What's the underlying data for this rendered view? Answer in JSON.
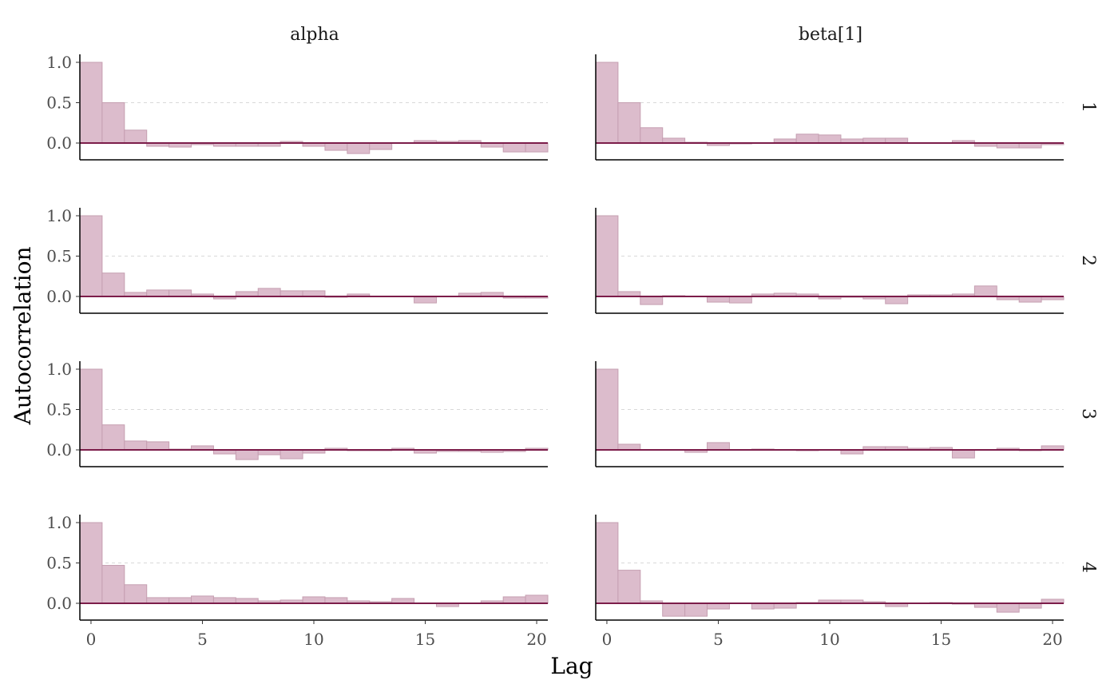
{
  "chart_data": {
    "type": "bar",
    "x_label": "Lag",
    "y_label": "Autocorrelation",
    "x_ticks": [
      0,
      5,
      10,
      15,
      20
    ],
    "y_ticks": [
      0.0,
      0.5,
      1.0
    ],
    "y_tick_labels": [
      "0.0",
      "0.5",
      "1.0"
    ],
    "xlim": [
      -0.5,
      20.5
    ],
    "ylim": [
      -0.21,
      1.1
    ],
    "grid": "dashed horizontal at 0.5",
    "colors": {
      "bar_fill": "#dcbccc",
      "bar_stroke": "#c59fb1",
      "zero_line": "#7c1d4a"
    },
    "columns": [
      "alpha",
      "beta[1]"
    ],
    "rows": [
      "1",
      "2",
      "3",
      "4"
    ],
    "lags": [
      0,
      1,
      2,
      3,
      4,
      5,
      6,
      7,
      8,
      9,
      10,
      11,
      12,
      13,
      14,
      15,
      16,
      17,
      18,
      19,
      20
    ],
    "panels": [
      {
        "column": "alpha",
        "row": "1",
        "values": [
          1.0,
          0.5,
          0.16,
          -0.04,
          -0.05,
          -0.02,
          -0.04,
          -0.04,
          -0.04,
          0.02,
          -0.04,
          -0.09,
          -0.13,
          -0.08,
          0.0,
          0.03,
          0.02,
          0.03,
          -0.05,
          -0.11,
          -0.11
        ]
      },
      {
        "column": "beta[1]",
        "row": "1",
        "values": [
          1.0,
          0.5,
          0.19,
          0.06,
          0.01,
          -0.03,
          -0.01,
          0.0,
          0.05,
          0.11,
          0.1,
          0.05,
          0.06,
          0.06,
          0.0,
          0.0,
          0.03,
          -0.04,
          -0.06,
          -0.06,
          -0.02
        ]
      },
      {
        "column": "alpha",
        "row": "2",
        "values": [
          1.0,
          0.29,
          0.05,
          0.08,
          0.08,
          0.03,
          -0.03,
          0.06,
          0.1,
          0.07,
          0.07,
          -0.01,
          0.03,
          0.0,
          0.0,
          -0.08,
          0.0,
          0.04,
          0.05,
          -0.02,
          -0.02
        ]
      },
      {
        "column": "beta[1]",
        "row": "2",
        "values": [
          1.0,
          0.06,
          -0.1,
          0.01,
          0.0,
          -0.07,
          -0.08,
          0.03,
          0.04,
          0.03,
          -0.03,
          -0.01,
          -0.03,
          -0.09,
          0.02,
          0.02,
          0.03,
          0.13,
          -0.04,
          -0.07,
          -0.04
        ]
      },
      {
        "column": "alpha",
        "row": "3",
        "values": [
          1.0,
          0.31,
          0.11,
          0.1,
          0.01,
          0.05,
          -0.05,
          -0.12,
          -0.06,
          -0.11,
          -0.04,
          0.02,
          -0.01,
          -0.01,
          0.02,
          -0.04,
          -0.02,
          -0.02,
          -0.03,
          -0.02,
          0.02
        ]
      },
      {
        "column": "beta[1]",
        "row": "3",
        "values": [
          1.0,
          0.07,
          0.0,
          0.0,
          -0.03,
          0.09,
          0.0,
          0.01,
          0.0,
          -0.01,
          0.0,
          -0.05,
          0.04,
          0.04,
          0.02,
          0.03,
          -0.1,
          0.0,
          0.02,
          -0.01,
          0.05
        ]
      },
      {
        "column": "alpha",
        "row": "4",
        "values": [
          1.0,
          0.47,
          0.23,
          0.07,
          0.07,
          0.09,
          0.07,
          0.06,
          0.03,
          0.04,
          0.08,
          0.07,
          0.03,
          0.02,
          0.06,
          0.0,
          -0.04,
          0.0,
          0.03,
          0.08,
          0.1
        ]
      },
      {
        "column": "beta[1]",
        "row": "4",
        "values": [
          1.0,
          0.41,
          0.03,
          -0.16,
          -0.16,
          -0.07,
          0.0,
          -0.07,
          -0.06,
          0.01,
          0.04,
          0.04,
          0.02,
          -0.04,
          0.0,
          0.01,
          -0.01,
          -0.05,
          -0.11,
          -0.06,
          0.05
        ]
      }
    ]
  }
}
